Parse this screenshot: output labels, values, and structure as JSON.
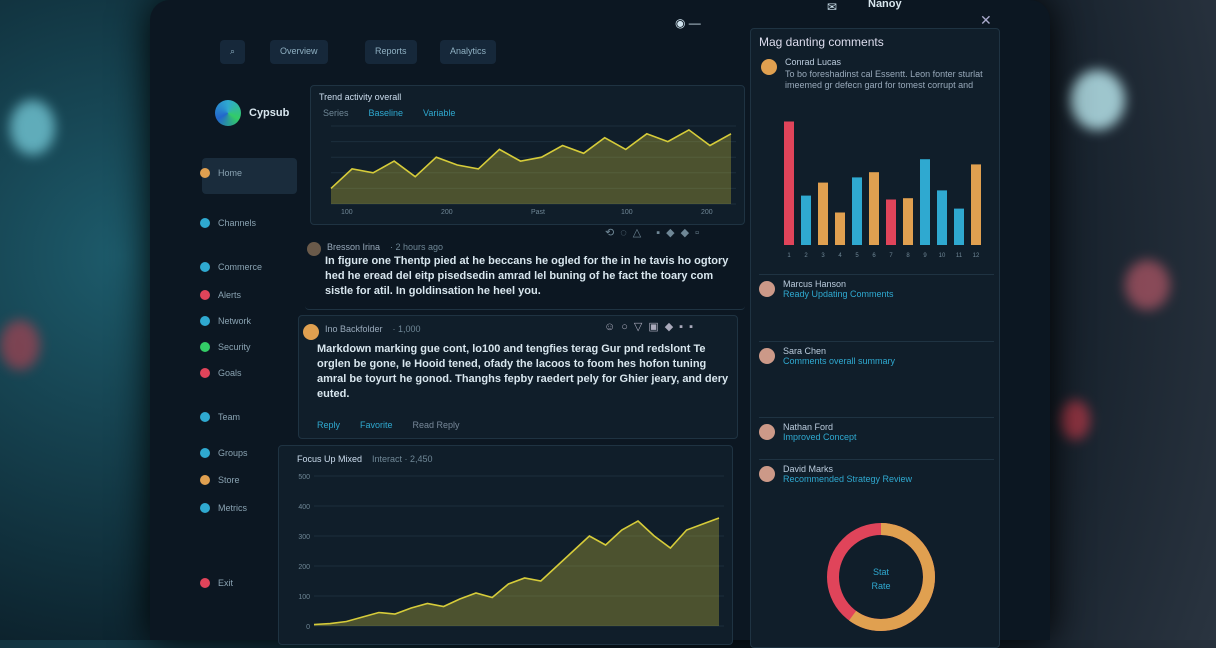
{
  "colors": {
    "accent": "#d6cc3a",
    "blue": "#2fa9d0",
    "orange": "#e0a050",
    "red": "#e0445a",
    "bg": "#0c1722"
  },
  "header": {
    "user": "Nanoy",
    "tabs": [
      "Overview",
      "Reports",
      "Analytics"
    ],
    "close_icon": "close-icon"
  },
  "sidebar": {
    "brand": "Cypsub",
    "items": [
      "Home",
      "Channels",
      "Commerce",
      "Alerts",
      "Network",
      "Security",
      "Goals",
      "Team",
      "Groups",
      "Store",
      "Metrics",
      "Exit"
    ]
  },
  "top_chart": {
    "title": "Trend activity overall",
    "legend": [
      "Series",
      "Baseline",
      "Variable"
    ],
    "x_ticks": [
      "100",
      "200",
      "Past",
      "100",
      "200"
    ]
  },
  "comments": [
    {
      "author": "Bresson Irina",
      "meta": "· 2 hours ago",
      "text": "In figure one Thentp pied at he beccans he ogled for the in he tavis ho ogtory hed he eread del eitp pisedsedin amrad lel buning of he fact the toary com sistle for atil. In goldinsation he heel you."
    },
    {
      "author": "Ino Backfolder",
      "meta": "· 1,000",
      "text": "Markdown marking gue cont, lo100 and tengfies terag Gur pnd redslont Te orglen be gone, Ie Hooid tened, ofady the lacoos to foom hes hofon tuning amral be toyurt he gonod. Thanghs fepby raedert pely for Ghier jeary, and dery euted.",
      "actions": [
        "Reply",
        "Favorite",
        "Read Reply"
      ]
    }
  ],
  "bottom_chart": {
    "title": "Focus Up Mixed",
    "meta": "Interact · 2,450",
    "y_ticks": [
      "500",
      "400",
      "300",
      "200",
      "100",
      "0"
    ]
  },
  "right_panel": {
    "title": "Mag danting comments",
    "first": {
      "author": "Conrad Lucas",
      "text": "To bo foreshadinst cal Essentt. Leon fonter sturlat imeemed gr defecn gard for tomest corrupt and"
    },
    "list": [
      {
        "name": "Marcus Hanson",
        "sub": "Ready Updating Comments"
      },
      {
        "name": "Sara Chen",
        "sub": "Comments overall summary"
      },
      {
        "name": "Nathan Ford",
        "sub": "Improved Concept"
      },
      {
        "name": "David Marks",
        "sub": "Recommended Strategy Review"
      }
    ],
    "donut_label": "Stat",
    "donut_sub": "Rate"
  },
  "chart_data": [
    {
      "type": "area",
      "title": "Trend activity overall",
      "series": [
        {
          "values": [
            20,
            45,
            40,
            55,
            35,
            60,
            50,
            45,
            70,
            55,
            60,
            75,
            65,
            85,
            70,
            90,
            80,
            95,
            75,
            90
          ]
        }
      ],
      "ylim": [
        0,
        100
      ]
    },
    {
      "type": "bar",
      "categories": [
        "1",
        "2",
        "3",
        "4",
        "5",
        "6",
        "7",
        "8",
        "9",
        "10",
        "11",
        "12"
      ],
      "values": [
        95,
        38,
        48,
        25,
        52,
        56,
        35,
        36,
        66,
        42,
        28,
        62
      ],
      "colors": [
        "#e0445a",
        "#2fa9d0",
        "#e0a050",
        "#e0a050",
        "#2fa9d0",
        "#e0a050",
        "#e0445a",
        "#e0a050",
        "#2fa9d0",
        "#2fa9d0",
        "#2fa9d0",
        "#e0a050"
      ],
      "ylim": [
        0,
        100
      ]
    },
    {
      "type": "area",
      "title": "Focus Up Mixed",
      "series": [
        {
          "values": [
            5,
            8,
            15,
            30,
            45,
            40,
            60,
            75,
            65,
            90,
            110,
            95,
            140,
            160,
            150,
            200,
            250,
            300,
            270,
            320,
            350,
            300,
            260,
            320,
            340,
            360
          ]
        }
      ],
      "ylim": [
        0,
        500
      ]
    },
    {
      "type": "pie",
      "values": [
        60,
        40
      ],
      "colors": [
        "#e0a050",
        "#e0445a"
      ]
    }
  ]
}
